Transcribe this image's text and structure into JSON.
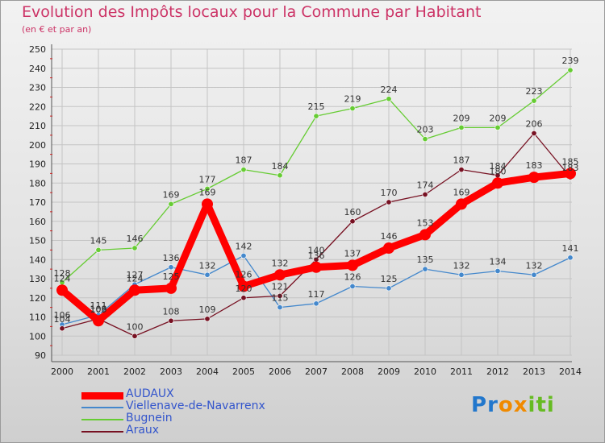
{
  "chart_data": {
    "type": "line",
    "title": "Evolution des Impôts locaux pour la Commune par Habitant",
    "subtitle": "(en € et par an)",
    "x": [
      "2000",
      "2001",
      "2002",
      "2003",
      "2004",
      "2005",
      "2006",
      "2007",
      "2008",
      "2009",
      "2010",
      "2011",
      "2012",
      "2013",
      "2014"
    ],
    "yticks": [
      "90",
      "100",
      "110",
      "120",
      "130",
      "140",
      "150",
      "160",
      "170",
      "180",
      "190",
      "200",
      "210",
      "220",
      "230",
      "240",
      "250"
    ],
    "ylim": [
      90,
      250
    ],
    "grid": true,
    "legend_position": "bottom-left",
    "series": [
      {
        "name": "AUDAUX",
        "color": "#ff0000",
        "values": [
          124,
          108,
          124,
          125,
          169,
          126,
          132,
          136,
          137,
          146,
          153,
          169,
          180,
          183,
          185
        ]
      },
      {
        "name": "Viellenave-de-Navarrenx",
        "color": "#4488cc",
        "values": [
          106,
          111,
          127,
          136,
          132,
          142,
          115,
          117,
          126,
          125,
          135,
          132,
          134,
          132,
          141
        ]
      },
      {
        "name": "Bugnein",
        "color": "#66cc33",
        "values": [
          128,
          145,
          146,
          169,
          177,
          187,
          184,
          215,
          219,
          224,
          203,
          209,
          209,
          223,
          239
        ]
      },
      {
        "name": "Araux",
        "color": "#771122",
        "values": [
          104,
          109,
          100,
          108,
          109,
          120,
          121,
          140,
          160,
          170,
          174,
          187,
          184,
          206,
          183
        ]
      }
    ]
  },
  "logo": {
    "letters": [
      "P",
      "r",
      "o",
      "x",
      "i",
      "t",
      "i"
    ],
    "colors": [
      "#2277cc",
      "#2277cc",
      "#f08a00",
      "#f08a00",
      "#66bb22",
      "#66bb22",
      "#66bb22"
    ]
  }
}
